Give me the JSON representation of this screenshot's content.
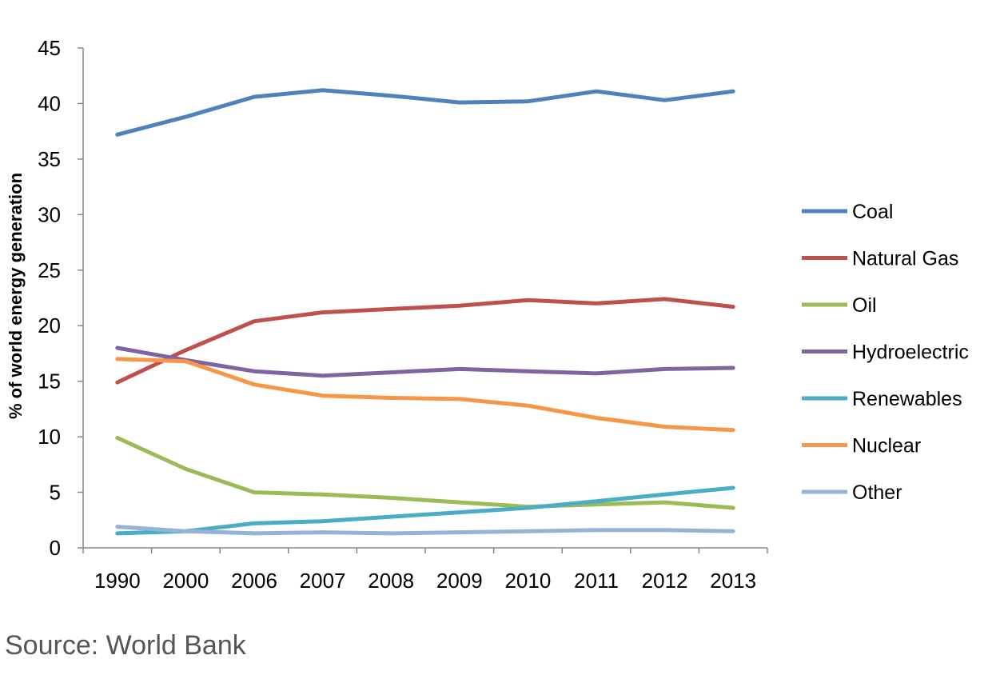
{
  "chart_data": {
    "type": "line",
    "x": [
      "1990",
      "2000",
      "2006",
      "2007",
      "2008",
      "2009",
      "2010",
      "2011",
      "2012",
      "2013"
    ],
    "ylabel": "% of world energy generation",
    "xlabel": "",
    "ylim": [
      0,
      45
    ],
    "yticks": [
      0,
      5,
      10,
      15,
      20,
      25,
      30,
      35,
      40,
      45
    ],
    "grid": false,
    "legend_position": "right",
    "series": [
      {
        "name": "Coal",
        "color": "#4F81BD",
        "values": [
          37.2,
          38.8,
          40.6,
          41.2,
          40.7,
          40.1,
          40.2,
          41.1,
          40.3,
          41.1
        ]
      },
      {
        "name": "Natural Gas",
        "color": "#C0504D",
        "values": [
          14.9,
          17.8,
          20.4,
          21.2,
          21.5,
          21.8,
          22.3,
          22.0,
          22.4,
          21.7
        ]
      },
      {
        "name": "Oil",
        "color": "#9BBB59",
        "values": [
          9.9,
          7.1,
          5.0,
          4.8,
          4.5,
          4.1,
          3.7,
          3.9,
          4.1,
          3.6
        ]
      },
      {
        "name": "Hydroelectric",
        "color": "#8064A2",
        "values": [
          18.0,
          16.9,
          15.9,
          15.5,
          15.8,
          16.1,
          15.9,
          15.7,
          16.1,
          16.2
        ]
      },
      {
        "name": "Renewables",
        "color": "#4BACC6",
        "values": [
          1.3,
          1.5,
          2.2,
          2.4,
          2.8,
          3.2,
          3.6,
          4.2,
          4.8,
          5.4
        ]
      },
      {
        "name": "Nuclear",
        "color": "#F79646",
        "values": [
          17.0,
          16.8,
          14.7,
          13.7,
          13.5,
          13.4,
          12.8,
          11.7,
          10.9,
          10.6
        ]
      },
      {
        "name": "Other",
        "color": "#95B3D7",
        "values": [
          1.9,
          1.5,
          1.3,
          1.4,
          1.3,
          1.4,
          1.5,
          1.6,
          1.6,
          1.5
        ]
      }
    ]
  },
  "source": "Source: World Bank"
}
